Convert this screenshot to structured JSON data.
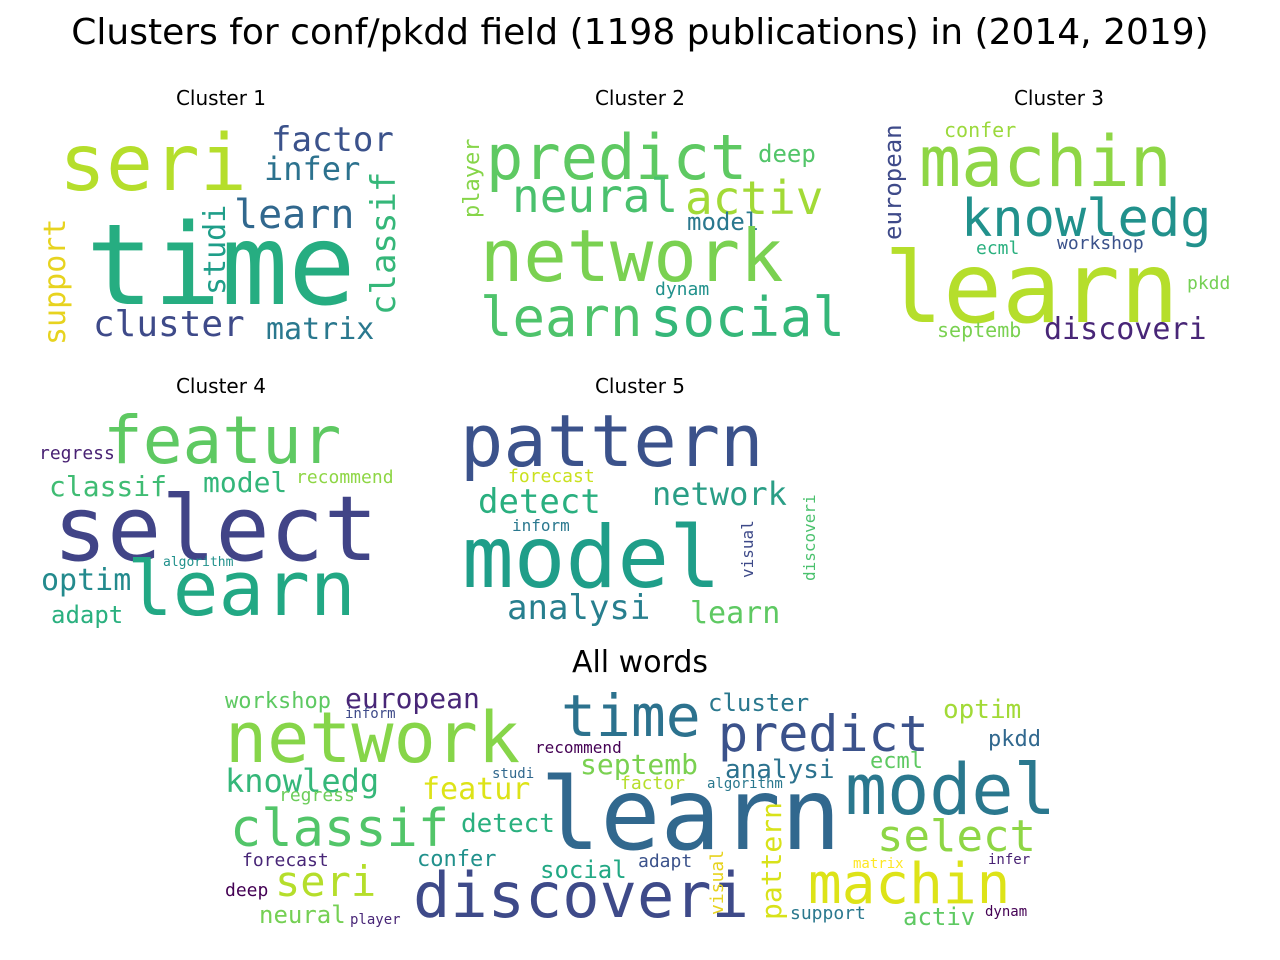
{
  "title": "Clusters for conf/pkdd field (1198 publications) in (2014, 2019)",
  "panels": [
    {
      "title": "Cluster 1"
    },
    {
      "title": "Cluster 2"
    },
    {
      "title": "Cluster 3"
    },
    {
      "title": "Cluster 4"
    },
    {
      "title": "Cluster 5"
    }
  ],
  "all_title": "All words",
  "clouds": {
    "c1": [
      {
        "text": "seri",
        "color": "#b5de2b"
      },
      {
        "text": "time",
        "color": "#26ad81"
      },
      {
        "text": "factor",
        "color": "#3b528b"
      },
      {
        "text": "infer",
        "color": "#2c728e"
      },
      {
        "text": "learn",
        "color": "#31688e"
      },
      {
        "text": "classif",
        "color": "#35b779"
      },
      {
        "text": "studi",
        "color": "#1f9e89"
      },
      {
        "text": "support",
        "color": "#e7d31f"
      },
      {
        "text": "cluster",
        "color": "#3e4a89"
      },
      {
        "text": "matrix",
        "color": "#2a788e"
      }
    ],
    "c2": [
      {
        "text": "predict",
        "color": "#5ec962"
      },
      {
        "text": "deep",
        "color": "#52c569"
      },
      {
        "text": "player",
        "color": "#86d549"
      },
      {
        "text": "neural",
        "color": "#4ac16d"
      },
      {
        "text": "activ",
        "color": "#a2da37"
      },
      {
        "text": "model",
        "color": "#2a788e"
      },
      {
        "text": "network",
        "color": "#7ad151"
      },
      {
        "text": "dynam",
        "color": "#21918c"
      },
      {
        "text": "learn",
        "color": "#4ec36b"
      },
      {
        "text": "social",
        "color": "#35b779"
      }
    ],
    "c3": [
      {
        "text": "confer",
        "color": "#9bd93c"
      },
      {
        "text": "european",
        "color": "#3e4a89"
      },
      {
        "text": "machin",
        "color": "#8ed645"
      },
      {
        "text": "knowledg",
        "color": "#21918c"
      },
      {
        "text": "ecml",
        "color": "#2ab07f"
      },
      {
        "text": "workshop",
        "color": "#3b528b"
      },
      {
        "text": "learn",
        "color": "#b5de2b"
      },
      {
        "text": "pkdd",
        "color": "#75d054"
      },
      {
        "text": "septemb",
        "color": "#7ad151"
      },
      {
        "text": "discoveri",
        "color": "#482677"
      }
    ],
    "c4": [
      {
        "text": "featur",
        "color": "#5ec962"
      },
      {
        "text": "regress",
        "color": "#482173"
      },
      {
        "text": "classif",
        "color": "#3fbc73"
      },
      {
        "text": "model",
        "color": "#33b67a"
      },
      {
        "text": "recommend",
        "color": "#8ed645"
      },
      {
        "text": "select",
        "color": "#414487"
      },
      {
        "text": "algorithm",
        "color": "#21918c"
      },
      {
        "text": "optim",
        "color": "#238a8d"
      },
      {
        "text": "learn",
        "color": "#22a884"
      },
      {
        "text": "adapt",
        "color": "#2ab07f"
      }
    ],
    "c5": [
      {
        "text": "pattern",
        "color": "#3b528b"
      },
      {
        "text": "forecast",
        "color": "#cae11f"
      },
      {
        "text": "detect",
        "color": "#29af7f"
      },
      {
        "text": "network",
        "color": "#2a9e86"
      },
      {
        "text": "inform",
        "color": "#2a788e"
      },
      {
        "text": "model",
        "color": "#1f9e89"
      },
      {
        "text": "visual",
        "color": "#3e4a89"
      },
      {
        "text": "discoveri",
        "color": "#4ac16d"
      },
      {
        "text": "analysi",
        "color": "#277f8e"
      },
      {
        "text": "learn",
        "color": "#5ec962"
      }
    ],
    "all": [
      {
        "text": "workshop",
        "color": "#5ec962"
      },
      {
        "text": "european",
        "color": "#482677"
      },
      {
        "text": "inform",
        "color": "#3e4a89"
      },
      {
        "text": "network",
        "color": "#86d549"
      },
      {
        "text": "time",
        "color": "#2c728e"
      },
      {
        "text": "cluster",
        "color": "#2a788e"
      },
      {
        "text": "predict",
        "color": "#3b528b"
      },
      {
        "text": "optim",
        "color": "#a2da37"
      },
      {
        "text": "recommend",
        "color": "#440154"
      },
      {
        "text": "pkdd",
        "color": "#31688e"
      },
      {
        "text": "knowledg",
        "color": "#35b779"
      },
      {
        "text": "septemb",
        "color": "#7ad151"
      },
      {
        "text": "analysi",
        "color": "#2c728e"
      },
      {
        "text": "ecml",
        "color": "#5ec962"
      },
      {
        "text": "studi",
        "color": "#31688e"
      },
      {
        "text": "factor",
        "color": "#b5de2b"
      },
      {
        "text": "algorithm",
        "color": "#2a788e"
      },
      {
        "text": "featur",
        "color": "#dde318"
      },
      {
        "text": "regress",
        "color": "#6ccd5a"
      },
      {
        "text": "learn",
        "color": "#31688e"
      },
      {
        "text": "model",
        "color": "#2a788e"
      },
      {
        "text": "classif",
        "color": "#52c569"
      },
      {
        "text": "detect",
        "color": "#2ab07f"
      },
      {
        "text": "select",
        "color": "#8ed645"
      },
      {
        "text": "confer",
        "color": "#21918c"
      },
      {
        "text": "forecast",
        "color": "#482677"
      },
      {
        "text": "adapt",
        "color": "#3b528b"
      },
      {
        "text": "social",
        "color": "#22a884"
      },
      {
        "text": "matrix",
        "color": "#fde725"
      },
      {
        "text": "infer",
        "color": "#482173"
      },
      {
        "text": "seri",
        "color": "#b5de2b"
      },
      {
        "text": "discoveri",
        "color": "#3e4a89"
      },
      {
        "text": "pattern",
        "color": "#d8e219"
      },
      {
        "text": "visual",
        "color": "#e7d31f"
      },
      {
        "text": "machin",
        "color": "#dde318"
      },
      {
        "text": "deep",
        "color": "#440154"
      },
      {
        "text": "neural",
        "color": "#75d054"
      },
      {
        "text": "player",
        "color": "#482677"
      },
      {
        "text": "support",
        "color": "#2a788e"
      },
      {
        "text": "activ",
        "color": "#5ec962"
      },
      {
        "text": "dynam",
        "color": "#440154"
      }
    ]
  }
}
